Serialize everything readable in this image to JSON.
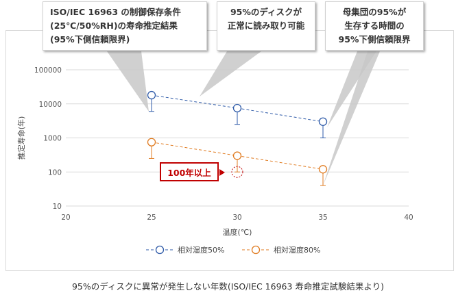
{
  "callouts": [
    {
      "lines": [
        "ISO/IEC 16963 の制御保存条件",
        "(25℃/50%RH)の寿命推定結果",
        "(95%下側信頼限界)"
      ]
    },
    {
      "lines": [
        "95%のディスクが",
        "正常に読み取り可能"
      ]
    },
    {
      "lines": [
        "母集団の95%が",
        "生存する時間の",
        "95%下側信頼限界"
      ]
    }
  ],
  "note_label": "100年以上",
  "caption": "95%のディスクに異常が発生しない年数(ISO/IEC 16963 寿命推定試験結果より)",
  "colors": {
    "series_1": "#2e5aa8",
    "series_2": "#e07b20",
    "note": "#c00000"
  },
  "chart_data": {
    "type": "line",
    "xlabel": "温度(℃)",
    "ylabel": "推定寿命(年)",
    "xlim": [
      20,
      40
    ],
    "ylim": [
      10,
      100000
    ],
    "y_scale": "log",
    "x_ticks": [
      20,
      25,
      30,
      35,
      40
    ],
    "y_ticks": [
      10,
      100,
      1000,
      10000,
      100000
    ],
    "y_tick_labels": [
      "10",
      "100",
      "1000",
      "10000",
      "100000"
    ],
    "grid": true,
    "legend_position": "bottom",
    "series": [
      {
        "name": "相対湿度50%",
        "x": [
          25,
          30,
          35
        ],
        "y": [
          18000,
          7500,
          3000
        ],
        "error_low": [
          6000,
          2500,
          1000
        ],
        "error_high": [
          18000,
          7500,
          3000
        ]
      },
      {
        "name": "相対湿度80%",
        "x": [
          25,
          30,
          35
        ],
        "y": [
          750,
          300,
          120
        ],
        "error_low": [
          250,
          100,
          40
        ],
        "error_high": [
          750,
          300,
          120
        ]
      }
    ],
    "annotation_point": {
      "x": 30,
      "y": 100
    }
  }
}
